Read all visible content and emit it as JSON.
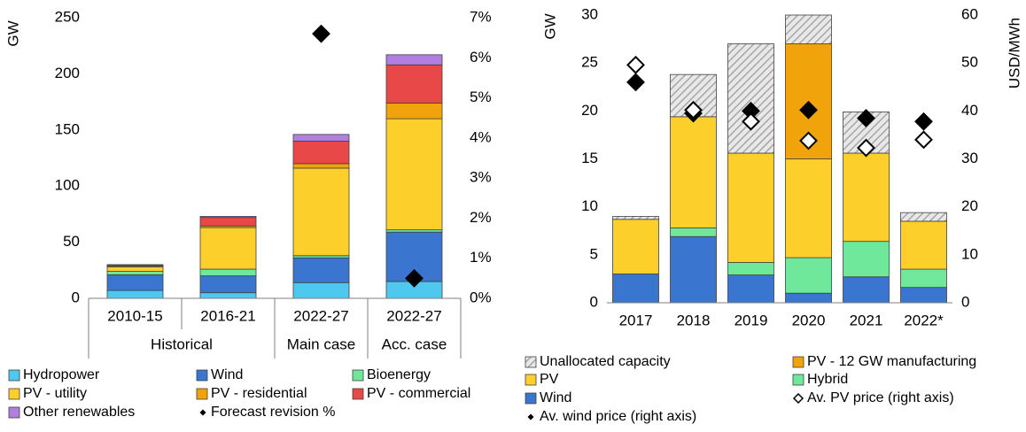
{
  "chart_data": [
    {
      "type": "bar",
      "stacked": true,
      "y_label": "GW",
      "categories": [
        "2010-15",
        "2016-21",
        "2022-27",
        "2022-27"
      ],
      "category_groups": [
        "Historical",
        "Main case",
        "Acc. case"
      ],
      "ylim": [
        0,
        250
      ],
      "yticks": [
        0,
        50,
        100,
        150,
        200,
        250
      ],
      "y2lim": [
        0,
        7
      ],
      "y2ticks": [
        {
          "value": 0,
          "label": "0%"
        },
        {
          "value": 1,
          "label": "1%"
        },
        {
          "value": 2,
          "label": "2%"
        },
        {
          "value": 3,
          "label": "3%"
        },
        {
          "value": 4,
          "label": "4%"
        },
        {
          "value": 5,
          "label": "5%"
        },
        {
          "value": 6,
          "label": "6%"
        },
        {
          "value": 7,
          "label": "7%"
        }
      ],
      "series": [
        {
          "name": "Hydropower",
          "color": "#4fc8f0",
          "values": [
            7,
            5,
            14,
            15
          ]
        },
        {
          "name": "Wind",
          "color": "#3a75d0",
          "values": [
            14,
            15,
            22,
            44
          ]
        },
        {
          "name": "Bioenergy",
          "color": "#6fe89b",
          "values": [
            3,
            6,
            2,
            2
          ]
        },
        {
          "name": "PV - utility",
          "color": "#fccf2a",
          "values": [
            4,
            37,
            78,
            99
          ]
        },
        {
          "name": "PV - residential",
          "color": "#f0a30a",
          "values": [
            1,
            1.5,
            4,
            14
          ]
        },
        {
          "name": "PV - commercial",
          "color": "#e84848",
          "values": [
            0.5,
            7.5,
            20,
            34
          ]
        },
        {
          "name": "Other renewables",
          "color": "#b07fe0",
          "values": [
            0.5,
            1,
            6,
            9
          ]
        },
        {
          "name": "Forecast revision %",
          "color": "#000000",
          "marker": "diamond-filled",
          "axis": "y2",
          "values": [
            null,
            null,
            6.6,
            0.5
          ]
        }
      ]
    },
    {
      "type": "bar",
      "stacked": true,
      "y_label": "GW",
      "y2_label": "USD/MWh",
      "categories": [
        "2017",
        "2018",
        "2019",
        "2020",
        "2021",
        "2022*"
      ],
      "ylim": [
        0,
        30
      ],
      "yticks": [
        0,
        5,
        10,
        15,
        20,
        25,
        30
      ],
      "y2lim": [
        0,
        60
      ],
      "y2ticks": [
        0,
        10,
        20,
        30,
        40,
        50,
        60
      ],
      "series": [
        {
          "name": "Wind",
          "color": "#3a75d0",
          "values": [
            3,
            6.9,
            2.9,
            1,
            2.7,
            1.6
          ]
        },
        {
          "name": "Hybrid",
          "color": "#6fe89b",
          "values": [
            0,
            0.9,
            1.3,
            3.7,
            3.7,
            1.9
          ]
        },
        {
          "name": "PV",
          "color": "#fccf2a",
          "values": [
            5.7,
            11.6,
            11.4,
            10.3,
            9.2,
            5
          ]
        },
        {
          "name": "PV - 12 GW manufacturing",
          "color": "#f0a30a",
          "values": [
            null,
            null,
            null,
            12,
            null,
            null
          ]
        },
        {
          "name": "Unallocated capacity",
          "color": "#bfbfbf",
          "pattern": "hatch",
          "values": [
            0.3,
            4.4,
            11.4,
            3,
            4.3,
            0.9
          ]
        },
        {
          "name": "Av. wind price (right axis)",
          "color": "#000000",
          "marker": "diamond-filled",
          "axis": "y2",
          "values": [
            46,
            39.5,
            40,
            40.2,
            38.5,
            37.8
          ]
        },
        {
          "name": "Av. PV price (right axis)",
          "color": "#000000",
          "marker": "diamond-open",
          "axis": "y2",
          "values": [
            49.6,
            40.2,
            37.8,
            33.8,
            32.3,
            34
          ]
        }
      ]
    }
  ]
}
